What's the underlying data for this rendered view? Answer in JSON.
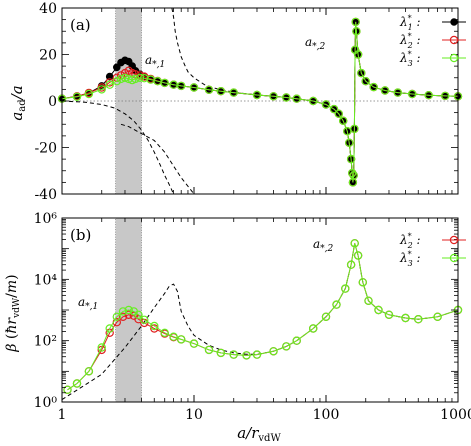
{
  "chart_data": [
    {
      "type": "line",
      "panel_label": "(a)",
      "xlabel": "",
      "ylabel": "a_ad/a",
      "x_scale": "log",
      "xlim": [
        1,
        1000
      ],
      "ylim": [
        -40,
        40
      ],
      "yticks": [
        -40,
        -20,
        0,
        20,
        40
      ],
      "ytick_labels": [
        "-40",
        "-20",
        "0",
        "20",
        "40"
      ],
      "shaded_region": [
        2.55,
        4.0
      ],
      "reference_line": 0,
      "annotations": [
        "a*,1",
        "a*,2"
      ],
      "series": [
        {
          "name": "λ1*",
          "color": "#000000",
          "x": [
            1.0,
            1.3,
            1.6,
            2.0,
            2.3,
            2.6,
            2.8,
            3.0,
            3.2,
            3.4,
            3.6,
            3.9,
            4.2,
            4.7,
            5.3,
            6.0,
            7.0,
            8.0,
            10.0,
            13.0,
            16.0,
            20.0,
            30.0,
            40.0,
            50.0,
            60.0,
            80.0,
            100.0,
            115.0,
            125.0,
            135.0,
            145.0,
            150.0,
            155.0,
            158.0,
            160.0,
            162.0,
            164.0,
            166.0,
            168.0,
            170.0,
            175.0,
            185.0,
            200.0,
            230.0,
            280.0,
            350.0,
            450.0,
            600.0,
            800.0,
            1000.0
          ],
          "y": [
            1.0,
            2.0,
            3.5,
            6.5,
            10.5,
            14.5,
            16.5,
            17.5,
            17.0,
            15.0,
            13.0,
            11.5,
            10.5,
            9.5,
            8.6,
            7.8,
            7.0,
            6.5,
            5.8,
            4.8,
            4.2,
            3.6,
            2.6,
            2.0,
            1.5,
            1.0,
            0.0,
            -1.5,
            -3.5,
            -5.5,
            -8.5,
            -13.0,
            -18.0,
            -25.0,
            -31.0,
            -35.0,
            -32.0,
            -12.0,
            22.0,
            34.0,
            30.0,
            20.0,
            12.0,
            8.5,
            6.0,
            4.5,
            3.6,
            3.0,
            2.5,
            2.2,
            2.0
          ]
        },
        {
          "name": "λ2*",
          "color": "#e02020",
          "x": [
            1.0,
            1.3,
            1.6,
            2.0,
            2.3,
            2.6,
            2.8,
            3.0,
            3.2,
            3.4,
            3.6,
            3.9,
            4.2,
            4.7,
            5.3,
            6.0,
            7.0,
            8.0,
            10.0,
            13.0,
            16.0,
            20.0,
            30.0,
            40.0,
            50.0,
            60.0,
            80.0,
            100.0,
            115.0,
            125.0,
            135.0,
            145.0,
            150.0,
            155.0,
            158.0,
            160.0,
            162.0,
            164.0,
            166.0,
            168.0,
            170.0,
            175.0,
            185.0,
            200.0,
            230.0,
            280.0,
            350.0,
            450.0,
            600.0,
            800.0,
            1000.0
          ],
          "y": [
            1.0,
            2.0,
            3.5,
            5.8,
            8.0,
            10.0,
            11.0,
            12.0,
            13.0,
            12.0,
            11.5,
            11.0,
            10.5,
            9.5,
            8.6,
            7.8,
            7.0,
            6.5,
            5.8,
            4.8,
            4.2,
            3.6,
            2.6,
            2.0,
            1.5,
            1.0,
            0.0,
            -1.5,
            -3.5,
            -5.5,
            -8.5,
            -13.0,
            -18.0,
            -25.0,
            -31.0,
            -35.0,
            -32.0,
            -12.0,
            22.0,
            34.0,
            30.0,
            20.0,
            12.0,
            8.5,
            6.0,
            4.5,
            3.6,
            3.0,
            2.5,
            2.2,
            2.0
          ]
        },
        {
          "name": "λ3*",
          "color": "#66ee22",
          "x": [
            1.0,
            1.3,
            1.6,
            2.0,
            2.3,
            2.6,
            2.8,
            3.0,
            3.2,
            3.4,
            3.6,
            3.9,
            4.2,
            4.7,
            5.3,
            6.0,
            7.0,
            8.0,
            10.0,
            13.0,
            16.0,
            20.0,
            30.0,
            40.0,
            50.0,
            60.0,
            80.0,
            100.0,
            115.0,
            125.0,
            135.0,
            145.0,
            150.0,
            155.0,
            158.0,
            160.0,
            162.0,
            164.0,
            166.0,
            168.0,
            170.0,
            175.0,
            185.0,
            200.0,
            230.0,
            280.0,
            350.0,
            450.0,
            600.0,
            800.0,
            1000.0
          ],
          "y": [
            1.0,
            1.8,
            3.0,
            5.0,
            7.0,
            8.5,
            9.5,
            10.0,
            9.5,
            9.0,
            9.5,
            10.0,
            9.8,
            9.2,
            8.5,
            7.8,
            7.0,
            6.5,
            5.8,
            4.8,
            4.2,
            3.6,
            2.6,
            2.0,
            1.5,
            1.0,
            0.0,
            -1.5,
            -3.5,
            -5.5,
            -8.5,
            -13.0,
            -18.0,
            -25.0,
            -31.0,
            -35.0,
            -32.0,
            -12.0,
            22.0,
            34.0,
            30.0,
            20.0,
            12.0,
            8.5,
            6.0,
            4.5,
            3.6,
            3.0,
            2.5,
            2.2,
            2.0
          ]
        }
      ],
      "dashed_curves": [
        {
          "x": [
            2.8,
            3.2,
            4.0,
            5.0,
            6.0,
            7.0,
            8.0,
            10.0,
            15.0,
            20.0,
            40.0,
            70.0,
            100.0,
            120.0,
            135.0,
            145.0,
            150.0,
            155.0,
            158.0,
            160.0
          ],
          "y": [
            -10.0,
            -11.0,
            -14.0,
            -17.0,
            -22.0,
            -28.0,
            -33.0,
            -40.0,
            -40.0,
            -40.0,
            -40.0,
            -40.0,
            -40.0,
            -40.0,
            -40.0,
            -40.0,
            -40.0,
            -40.0,
            -40.0,
            -40.0
          ]
        },
        {
          "x": [
            1.0,
            1.5,
            2.0,
            2.5,
            3.0,
            3.5,
            4.0,
            4.5,
            5.0,
            5.5,
            6.0,
            6.5,
            7.0
          ],
          "y": [
            0.0,
            -0.5,
            -1.5,
            -3.0,
            -5.5,
            -8.5,
            -12.5,
            -17.0,
            -22.0,
            -27.0,
            -32.0,
            -36.0,
            -40.0
          ]
        },
        {
          "x": [
            6.8,
            7.0,
            7.2,
            7.5,
            8.0,
            8.5,
            9.0,
            10.0,
            12.0,
            15.0,
            20.0,
            30.0,
            40.0,
            50.0,
            60.0,
            80.0,
            100.0,
            115.0,
            125.0,
            135.0,
            145.0,
            150.0,
            155.0,
            158.0
          ],
          "y": [
            40.0,
            36.0,
            30.0,
            25.0,
            19.0,
            15.5,
            12.5,
            10.0,
            7.0,
            5.2,
            3.8,
            2.6,
            2.0,
            1.5,
            1.0,
            0.0,
            -1.5,
            -3.5,
            -5.5,
            -8.5,
            -13.0,
            -18.0,
            -25.0,
            -31.0
          ]
        },
        {
          "x": [
            160.0,
            162.0,
            164.0,
            166.0,
            168.0,
            170.0,
            175.0,
            185.0,
            200.0,
            230.0,
            280.0,
            350.0,
            450.0,
            600.0,
            800.0,
            1000.0
          ],
          "y": [
            -35.0,
            -32.0,
            -12.0,
            22.0,
            34.0,
            30.0,
            20.0,
            12.0,
            8.5,
            6.0,
            4.5,
            3.6,
            3.0,
            2.5,
            2.2,
            2.0
          ]
        }
      ]
    },
    {
      "type": "line",
      "panel_label": "(b)",
      "xlabel": "a/r_vdW",
      "ylabel": "β (ħ r_vdW/m)",
      "x_scale": "log",
      "y_scale": "log",
      "xlim": [
        1,
        1000
      ],
      "ylim": [
        1,
        1000000
      ],
      "xticks": [
        1,
        10,
        100,
        1000
      ],
      "xtick_labels": [
        "1",
        "10",
        "100",
        "1000"
      ],
      "yticks": [
        1,
        100,
        10000,
        1000000
      ],
      "ytick_labels": [
        "10⁰",
        "10²",
        "10⁴",
        "10⁶"
      ],
      "shaded_region": [
        2.55,
        4.0
      ],
      "annotations": [
        "a*,1",
        "a*,2"
      ],
      "series": [
        {
          "name": "λ2*",
          "color": "#e02020",
          "x": [
            1.1,
            1.3,
            1.6,
            2.0,
            2.3,
            2.6,
            2.9,
            3.2,
            3.5,
            3.8,
            4.2,
            5.0,
            6.0,
            7.0,
            8.0,
            10.0,
            13.0,
            16.0,
            20.0,
            25.0,
            30.0,
            40.0,
            50.0,
            60.0,
            80.0,
            100.0,
            120.0,
            140.0,
            155.0,
            165.0,
            175.0,
            190.0,
            210.0,
            250.0,
            300.0,
            400.0,
            500.0,
            700.0,
            1000.0
          ],
          "y": [
            2.5,
            4.0,
            10.0,
            50.0,
            180.0,
            400.0,
            600.0,
            700.0,
            650.0,
            500.0,
            380.0,
            250.0,
            170.0,
            130.0,
            110.0,
            80.0,
            50.0,
            40.0,
            35.0,
            33.0,
            35.0,
            45.0,
            65.0,
            100.0,
            250.0,
            600.0,
            1500.0,
            5000.0,
            30000.0,
            150000.0,
            60000.0,
            8000.0,
            2000.0,
            1000.0,
            700.0,
            550.0,
            500.0,
            600.0,
            1000.0
          ]
        },
        {
          "name": "λ3*",
          "color": "#66ee22",
          "x": [
            1.1,
            1.3,
            1.6,
            2.0,
            2.3,
            2.6,
            2.9,
            3.2,
            3.5,
            3.8,
            4.2,
            5.0,
            6.0,
            7.0,
            8.0,
            10.0,
            13.0,
            16.0,
            20.0,
            25.0,
            30.0,
            40.0,
            50.0,
            60.0,
            80.0,
            100.0,
            120.0,
            140.0,
            155.0,
            165.0,
            175.0,
            190.0,
            210.0,
            250.0,
            300.0,
            400.0,
            500.0,
            700.0,
            1000.0
          ],
          "y": [
            2.5,
            4.0,
            10.0,
            60.0,
            250.0,
            600.0,
            900.0,
            1000.0,
            900.0,
            700.0,
            480.0,
            300.0,
            180.0,
            135.0,
            110.0,
            80.0,
            50.0,
            40.0,
            35.0,
            33.0,
            35.0,
            45.0,
            65.0,
            100.0,
            250.0,
            600.0,
            1500.0,
            5000.0,
            30000.0,
            150000.0,
            60000.0,
            8000.0,
            2000.0,
            1000.0,
            700.0,
            550.0,
            500.0,
            600.0,
            1000.0
          ]
        }
      ],
      "dashed_curves": [
        {
          "x": [
            1.0,
            2.0,
            3.0,
            4.0,
            5.0,
            6.0,
            6.5,
            7.0,
            7.5,
            8.0,
            9.0,
            10.0,
            13.0,
            16.0,
            20.0,
            25.0,
            30.0,
            40.0,
            50.0,
            60.0,
            80.0,
            100.0,
            120.0,
            140.0,
            155.0,
            165.0,
            175.0,
            190.0,
            210.0,
            250.0,
            300.0,
            400.0,
            500.0,
            700.0,
            1000.0
          ],
          "y": [
            1.2,
            8.0,
            60.0,
            300.0,
            1200.0,
            3500.0,
            6000.0,
            7000.0,
            4000.0,
            900.0,
            300.0,
            150.0,
            70.0,
            50.0,
            40.0,
            36.0,
            36.0,
            45.0,
            65.0,
            100.0,
            250.0,
            600.0,
            1500.0,
            5000.0,
            30000.0,
            150000.0,
            60000.0,
            8000.0,
            2000.0,
            1000.0,
            700.0,
            550.0,
            500.0,
            600.0,
            1000.0
          ]
        }
      ]
    }
  ]
}
